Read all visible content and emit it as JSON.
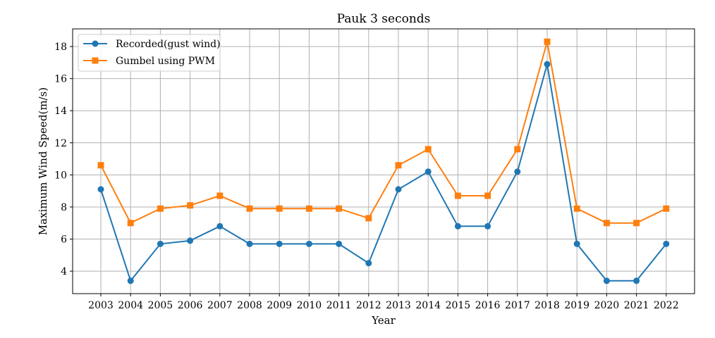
{
  "chart_data": {
    "type": "line",
    "title": "Pauk 3 seconds",
    "xlabel": "Year",
    "ylabel": "Maximum Wind Speed(m/s)",
    "categories": [
      "2003",
      "2004",
      "2005",
      "2006",
      "2007",
      "2008",
      "2009",
      "2010",
      "2011",
      "2012",
      "2013",
      "2014",
      "2015",
      "2016",
      "2017",
      "2018",
      "2019",
      "2020",
      "2021",
      "2022"
    ],
    "ylim": [
      2.6,
      19.1
    ],
    "yticks": [
      4,
      6,
      8,
      10,
      12,
      14,
      16,
      18
    ],
    "grid": true,
    "legend_position": "top-left",
    "series": [
      {
        "name": "Recorded(gust wind)",
        "color": "#1f77b4",
        "marker": "circle",
        "values": [
          9.1,
          3.4,
          5.7,
          5.9,
          6.8,
          5.7,
          5.7,
          5.7,
          5.7,
          4.5,
          9.1,
          10.2,
          6.8,
          6.8,
          10.2,
          16.9,
          5.7,
          3.4,
          3.4,
          5.7
        ]
      },
      {
        "name": "Gumbel using PWM",
        "color": "#ff7f0e",
        "marker": "square",
        "values": [
          10.6,
          7.0,
          7.9,
          8.1,
          8.7,
          7.9,
          7.9,
          7.9,
          7.9,
          7.3,
          10.6,
          11.6,
          8.7,
          8.7,
          11.6,
          18.3,
          7.9,
          7.0,
          7.0,
          7.9
        ]
      }
    ]
  }
}
